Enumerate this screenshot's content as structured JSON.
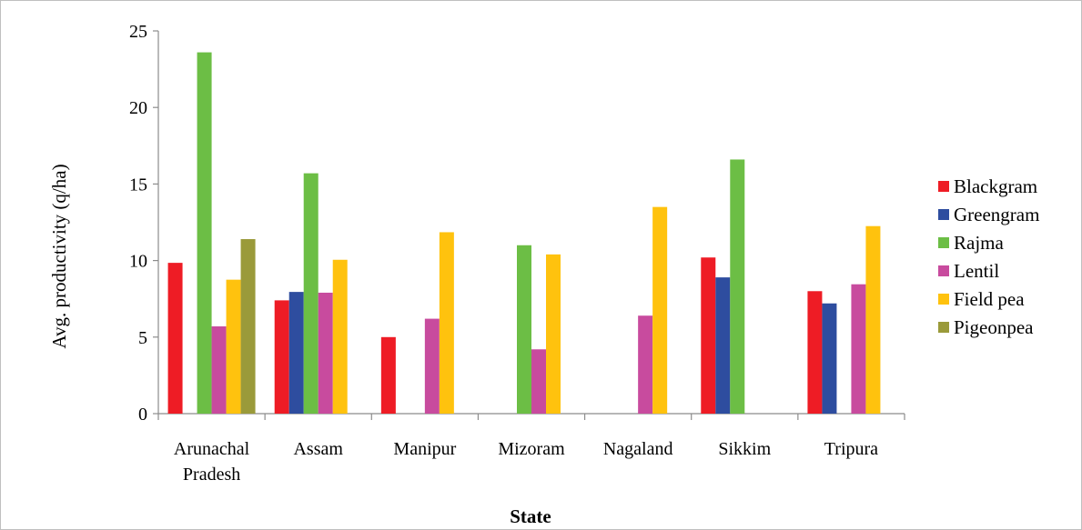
{
  "chart_data": {
    "type": "bar",
    "title": "",
    "xlabel": "State",
    "ylabel": "Avg. productivity (q/ha)",
    "ylim": [
      0,
      25
    ],
    "yticks": [
      "0",
      "5",
      "10",
      "15",
      "20",
      "25"
    ],
    "categories": [
      [
        "Arunachal",
        "Pradesh"
      ],
      [
        "Assam"
      ],
      [
        "Manipur"
      ],
      [
        "Mizoram"
      ],
      [
        "Nagaland"
      ],
      [
        "Sikkim"
      ],
      [
        "Tripura"
      ]
    ],
    "grid": false,
    "legend_position": "right",
    "series": [
      {
        "name": "Blackgram",
        "color": "#ee1c25",
        "values": [
          9.85,
          7.4,
          5.0,
          null,
          null,
          10.2,
          8.0
        ]
      },
      {
        "name": "Greengram",
        "color": "#2e4d9f",
        "values": [
          null,
          7.95,
          null,
          null,
          null,
          8.9,
          7.2
        ]
      },
      {
        "name": "Rajma",
        "color": "#6cbe45",
        "values": [
          23.6,
          15.7,
          null,
          11.0,
          null,
          16.6,
          null
        ]
      },
      {
        "name": "Lentil",
        "color": "#c84b9e",
        "values": [
          5.7,
          7.9,
          6.2,
          4.2,
          6.4,
          null,
          8.45
        ]
      },
      {
        "name": "Field pea",
        "color": "#ffc20e",
        "values": [
          8.75,
          10.05,
          11.85,
          10.4,
          13.5,
          null,
          12.25
        ]
      },
      {
        "name": "Pigeonpea",
        "color": "#9a9a3a",
        "values": [
          11.4,
          null,
          null,
          null,
          null,
          null,
          null
        ]
      }
    ]
  }
}
